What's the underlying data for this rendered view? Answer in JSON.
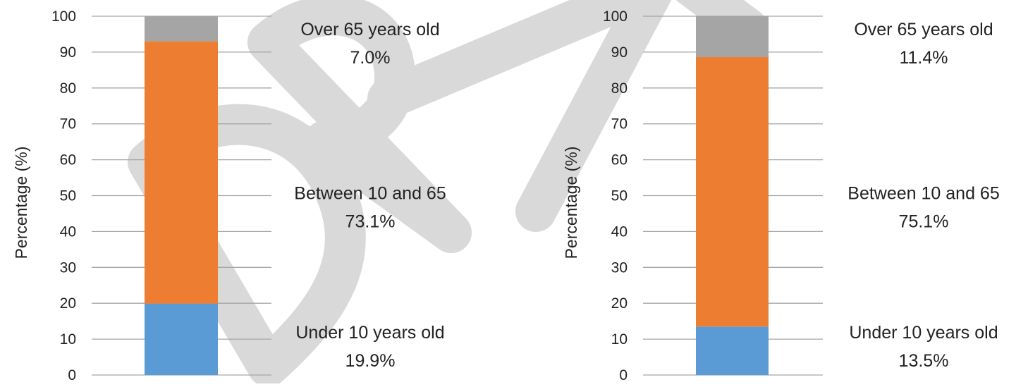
{
  "watermark": "DRAFT",
  "chart_data": [
    {
      "type": "bar",
      "stacked": true,
      "ylabel": "Percentage (%)",
      "ylim": [
        0,
        100
      ],
      "yticks": [
        0,
        10,
        20,
        30,
        40,
        50,
        60,
        70,
        80,
        90,
        100
      ],
      "grid": true,
      "series": [
        {
          "name": "Under 10 years old",
          "value": 19.9,
          "value_label": "19.9%",
          "color": "#5B9BD5"
        },
        {
          "name": "Between 10 and 65",
          "value": 73.1,
          "value_label": "73.1%",
          "color": "#ED7D31"
        },
        {
          "name": "Over 65 years old",
          "value": 7.0,
          "value_label": "7.0%",
          "color": "#A5A5A5"
        }
      ]
    },
    {
      "type": "bar",
      "stacked": true,
      "ylabel": "Percentage (%)",
      "ylim": [
        0,
        100
      ],
      "yticks": [
        0,
        10,
        20,
        30,
        40,
        50,
        60,
        70,
        80,
        90,
        100
      ],
      "grid": true,
      "series": [
        {
          "name": "Under 10 years old",
          "value": 13.5,
          "value_label": "13.5%",
          "color": "#5B9BD5"
        },
        {
          "name": "Between 10 and 65",
          "value": 75.1,
          "value_label": "75.1%",
          "color": "#ED7D31"
        },
        {
          "name": "Over 65 years old",
          "value": 11.4,
          "value_label": "11.4%",
          "color": "#A5A5A5"
        }
      ]
    }
  ]
}
